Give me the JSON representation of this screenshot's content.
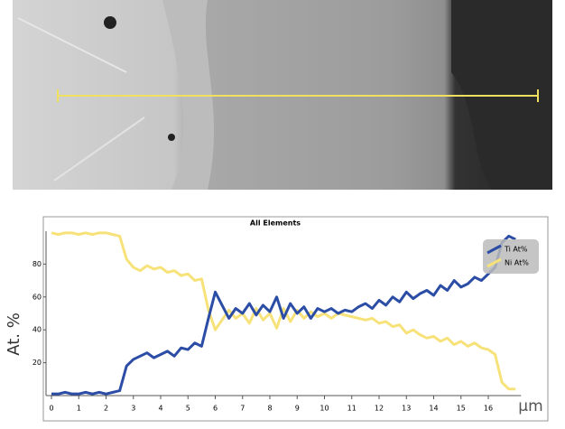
{
  "chart_data": {
    "type": "line",
    "title": "All Elements",
    "ylabel": "At. %",
    "xlabel": "µm",
    "x": [
      0,
      0.25,
      0.5,
      0.75,
      1,
      1.25,
      1.5,
      1.75,
      2,
      2.25,
      2.5,
      2.75,
      3,
      3.25,
      3.5,
      3.75,
      4,
      4.25,
      4.5,
      4.75,
      5,
      5.25,
      5.5,
      5.75,
      6,
      6.25,
      6.5,
      6.75,
      7,
      7.25,
      7.5,
      7.75,
      8,
      8.25,
      8.5,
      8.75,
      9,
      9.25,
      9.5,
      9.75,
      10,
      10.25,
      10.5,
      10.75,
      11,
      11.25,
      11.5,
      11.75,
      12,
      12.25,
      12.5,
      12.75,
      13,
      13.25,
      13.5,
      13.75,
      14,
      14.25,
      14.5,
      14.75,
      15,
      15.25,
      15.5,
      15.75,
      16,
      16.25,
      16.5,
      16.75,
      17
    ],
    "series": [
      {
        "name": "Ti At%",
        "color": "#2c4da6",
        "values": [
          1,
          1,
          2,
          1,
          1,
          2,
          1,
          2,
          1,
          2,
          3,
          18,
          22,
          24,
          26,
          23,
          25,
          27,
          24,
          29,
          28,
          32,
          30,
          47,
          63,
          55,
          47,
          53,
          50,
          56,
          49,
          55,
          51,
          60,
          47,
          56,
          50,
          54,
          47,
          53,
          51,
          53,
          50,
          52,
          51,
          54,
          56,
          53,
          58,
          55,
          60,
          57,
          63,
          59,
          62,
          64,
          61,
          67,
          64,
          70,
          66,
          68,
          72,
          70,
          74,
          78,
          93,
          97,
          95
        ]
      },
      {
        "name": "Ni At%",
        "color": "#f7e27a",
        "values": [
          99,
          98,
          99,
          99,
          98,
          99,
          98,
          99,
          99,
          98,
          97,
          83,
          78,
          76,
          79,
          77,
          78,
          75,
          76,
          73,
          74,
          70,
          71,
          52,
          40,
          46,
          52,
          47,
          50,
          44,
          53,
          46,
          50,
          41,
          53,
          45,
          52,
          47,
          51,
          48,
          50,
          47,
          50,
          49,
          48,
          47,
          46,
          47,
          44,
          45,
          42,
          43,
          38,
          40,
          37,
          35,
          36,
          33,
          35,
          31,
          33,
          30,
          32,
          29,
          28,
          25,
          8,
          4,
          4
        ]
      }
    ],
    "xlim": [
      0,
      17.2
    ],
    "ylim": [
      0,
      100
    ],
    "xticks": [
      0,
      1,
      2,
      3,
      4,
      5,
      6,
      7,
      8,
      9,
      10,
      11,
      12,
      13,
      14,
      15,
      16
    ],
    "yticks": [
      20,
      40,
      60,
      80
    ],
    "legend": "top-right"
  }
}
